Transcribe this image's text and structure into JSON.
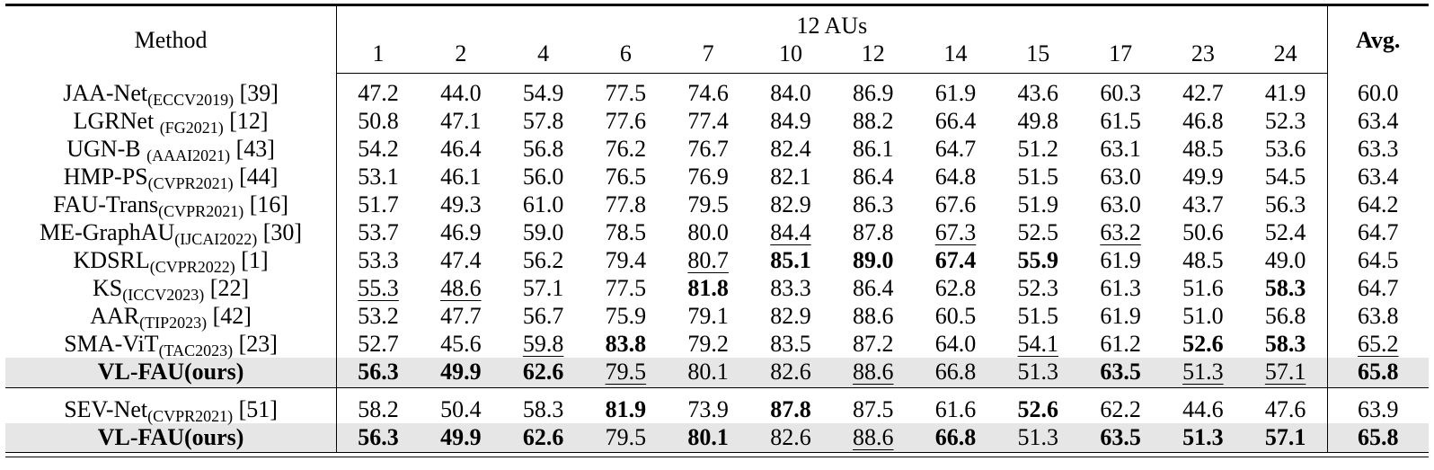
{
  "header": {
    "method_label": "Method",
    "group_label": "12 AUs",
    "au_columns": [
      "1",
      "2",
      "4",
      "6",
      "7",
      "10",
      "12",
      "14",
      "15",
      "17",
      "23",
      "24"
    ],
    "avg_label": "Avg."
  },
  "highlight_color": "#e6e6e6",
  "rows_main": [
    {
      "name": "JAA-Net",
      "venue": "(ECCV2019)",
      "ref": "[39]",
      "values": [
        "47.2",
        "44.0",
        "54.9",
        "77.5",
        "74.6",
        "84.0",
        "86.9",
        "61.9",
        "43.6",
        "60.3",
        "42.7",
        "41.9"
      ],
      "avg": "60.0",
      "style": [
        "",
        "",
        "",
        "",
        "",
        "",
        "",
        "",
        "",
        "",
        "",
        ""
      ],
      "avg_style": ""
    },
    {
      "name": "LGRNet ",
      "venue": "(FG2021)",
      "ref": "[12]",
      "values": [
        "50.8",
        "47.1",
        "57.8",
        "77.6",
        "77.4",
        "84.9",
        "88.2",
        "66.4",
        "49.8",
        "61.5",
        "46.8",
        "52.3"
      ],
      "avg": "63.4",
      "style": [
        "",
        "",
        "",
        "",
        "",
        "",
        "",
        "",
        "",
        "",
        "",
        ""
      ],
      "avg_style": ""
    },
    {
      "name": "UGN-B ",
      "venue": "(AAAI2021)",
      "ref": "[43]",
      "values": [
        "54.2",
        "46.4",
        "56.8",
        "76.2",
        "76.7",
        "82.4",
        "86.1",
        "64.7",
        "51.2",
        "63.1",
        "48.5",
        "53.6"
      ],
      "avg": "63.3",
      "style": [
        "",
        "",
        "",
        "",
        "",
        "",
        "",
        "",
        "",
        "",
        "",
        ""
      ],
      "avg_style": ""
    },
    {
      "name": "HMP-PS",
      "venue": "(CVPR2021)",
      "ref": "[44]",
      "values": [
        "53.1",
        "46.1",
        "56.0",
        "76.5",
        "76.9",
        "82.1",
        "86.4",
        "64.8",
        "51.5",
        "63.0",
        "49.9",
        "54.5"
      ],
      "avg": "63.4",
      "style": [
        "",
        "",
        "",
        "",
        "",
        "",
        "",
        "",
        "",
        "",
        "",
        ""
      ],
      "avg_style": ""
    },
    {
      "name": "FAU-Trans",
      "venue": "(CVPR2021)",
      "ref": "[16]",
      "values": [
        "51.7",
        "49.3",
        "61.0",
        "77.8",
        "79.5",
        "82.9",
        "86.3",
        "67.6",
        "51.9",
        "63.0",
        "43.7",
        "56.3"
      ],
      "avg": "64.2",
      "style": [
        "",
        "",
        "",
        "",
        "",
        "",
        "",
        "",
        "",
        "",
        "",
        ""
      ],
      "avg_style": ""
    },
    {
      "name": "ME-GraphAU",
      "venue": "(IJCAI2022)",
      "ref": "[30]",
      "values": [
        "53.7",
        "46.9",
        "59.0",
        "78.5",
        "80.0",
        "84.4",
        "87.8",
        "67.3",
        "52.5",
        "63.2",
        "50.6",
        "52.4"
      ],
      "avg": "64.7",
      "style": [
        "",
        "",
        "",
        "",
        "",
        "u",
        "",
        "u",
        "",
        "u",
        "",
        ""
      ],
      "avg_style": ""
    },
    {
      "name": "KDSRL",
      "venue": "(CVPR2022)",
      "ref": "[1]",
      "values": [
        "53.3",
        "47.4",
        "56.2",
        "79.4",
        "80.7",
        "85.1",
        "89.0",
        "67.4",
        "55.9",
        "61.9",
        "48.5",
        "49.0"
      ],
      "avg": "64.5",
      "style": [
        "",
        "",
        "",
        "",
        "u",
        "b",
        "b",
        "b",
        "b",
        "",
        "",
        ""
      ],
      "avg_style": ""
    },
    {
      "name": "KS",
      "venue": "(ICCV2023)",
      "ref": "[22]",
      "values": [
        "55.3",
        "48.6",
        "57.1",
        "77.5",
        "81.8",
        "83.3",
        "86.4",
        "62.8",
        "52.3",
        "61.3",
        "51.6",
        "58.3"
      ],
      "avg": "64.7",
      "style": [
        "u",
        "u",
        "",
        "",
        "b",
        "",
        "",
        "",
        "",
        "",
        "",
        "b"
      ],
      "avg_style": ""
    },
    {
      "name": "AAR",
      "venue": "(TIP2023)",
      "ref": "[42]",
      "values": [
        "53.2",
        "47.7",
        "56.7",
        "75.9",
        "79.1",
        "82.9",
        "88.6",
        "60.5",
        "51.5",
        "61.9",
        "51.0",
        "56.8"
      ],
      "avg": "63.8",
      "style": [
        "",
        "",
        "",
        "",
        "",
        "",
        "",
        "",
        "",
        "",
        "",
        ""
      ],
      "avg_style": ""
    },
    {
      "name": "SMA-ViT",
      "venue": "(TAC2023)",
      "ref": "[23]",
      "values": [
        "52.7",
        "45.6",
        "59.8",
        "83.8",
        "79.2",
        "83.5",
        "87.2",
        "64.0",
        "54.1",
        "61.2",
        "52.6",
        "58.3"
      ],
      "avg": "65.2",
      "style": [
        "",
        "",
        "u",
        "b",
        "",
        "",
        "",
        "",
        "u",
        "",
        "b",
        "b"
      ],
      "avg_style": "u"
    },
    {
      "name": "VL-FAU(ours)",
      "venue": "",
      "ref": "",
      "values": [
        "56.3",
        "49.9",
        "62.6",
        "79.5",
        "80.1",
        "82.6",
        "88.6",
        "66.8",
        "51.3",
        "63.5",
        "51.3",
        "57.1"
      ],
      "avg": "65.8",
      "style": [
        "b",
        "b",
        "b",
        "u",
        "",
        "",
        "u",
        "",
        "",
        "b",
        "u",
        "u"
      ],
      "avg_style": "b",
      "bold_name": true,
      "highlight": true
    }
  ],
  "rows_extra": [
    {
      "name": "SEV-Net",
      "venue": "(CVPR2021)",
      "ref": "[51]",
      "values": [
        "58.2",
        "50.4",
        "58.3",
        "81.9",
        "73.9",
        "87.8",
        "87.5",
        "61.6",
        "52.6",
        "62.2",
        "44.6",
        "47.6"
      ],
      "avg": "63.9",
      "style": [
        "",
        "",
        "",
        "b",
        "",
        "b",
        "",
        "",
        "b",
        "",
        "",
        ""
      ],
      "avg_style": ""
    },
    {
      "name": "VL-FAU(ours)",
      "venue": "",
      "ref": "",
      "values": [
        "56.3",
        "49.9",
        "62.6",
        "79.5",
        "80.1",
        "82.6",
        "88.6",
        "66.8",
        "51.3",
        "63.5",
        "51.3",
        "57.1"
      ],
      "avg": "65.8",
      "style": [
        "b",
        "b",
        "b",
        "",
        "b",
        "",
        "u",
        "b",
        "",
        "b",
        "b",
        "b"
      ],
      "avg_style": "b",
      "bold_name": true,
      "highlight": true
    }
  ]
}
